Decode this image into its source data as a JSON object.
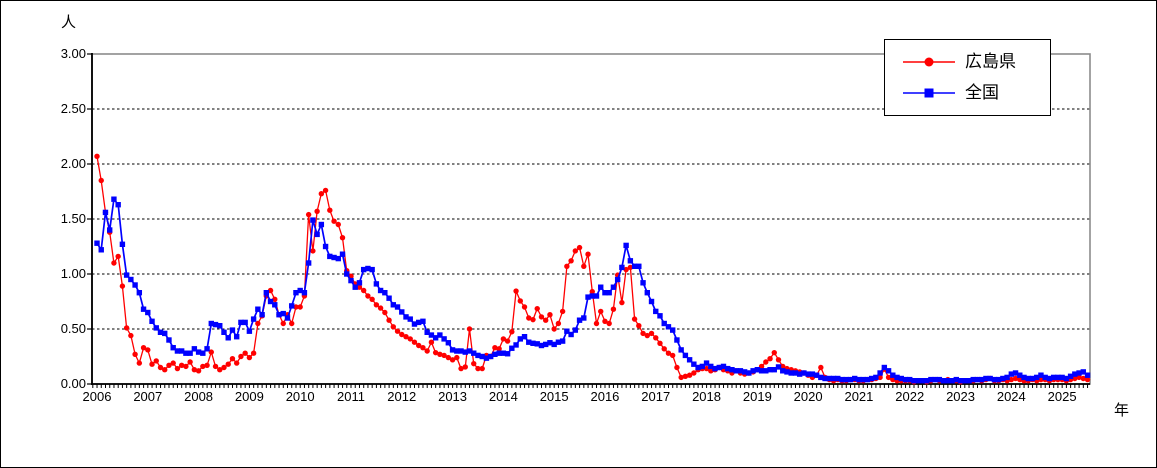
{
  "figure": {
    "y_unit": "人",
    "x_unit": "年",
    "y_tick_labels": [
      "3.00",
      "2.50",
      "2.00",
      "1.50",
      "1.00",
      "0.50",
      "0.00"
    ],
    "x_tick_labels": [
      "2006",
      "2007",
      "2008",
      "2009",
      "2010",
      "2011",
      "2012",
      "2013",
      "2014",
      "2015",
      "2016",
      "2017",
      "2018",
      "2019",
      "2020",
      "2021",
      "2022",
      "2023",
      "2024",
      "2025"
    ]
  },
  "legend": {
    "items": [
      {
        "label": "広島県",
        "color": "#ff0000",
        "marker": "circle"
      },
      {
        "label": "全国",
        "color": "#0000ff",
        "marker": "square"
      }
    ]
  },
  "chart_data": {
    "type": "line",
    "title": "",
    "xlabel": "年",
    "ylabel": "人",
    "x_interval": "monthly",
    "x_start": "2006-01",
    "x_end": "2025-07",
    "ylim": [
      0,
      3
    ],
    "y_ticks": [
      0,
      0.5,
      1,
      1.5,
      2,
      2.5,
      3
    ],
    "grid": "horizontal-dashed",
    "legend_position": "top-right",
    "frame_color": "#8c8c8c",
    "series": [
      {
        "name": "広島県",
        "color": "#ff0000",
        "marker": "circle",
        "values": [
          2.07,
          1.85,
          1.56,
          1.38,
          1.1,
          1.16,
          0.89,
          0.51,
          0.44,
          0.27,
          0.19,
          0.33,
          0.31,
          0.18,
          0.21,
          0.15,
          0.13,
          0.17,
          0.19,
          0.14,
          0.17,
          0.16,
          0.2,
          0.13,
          0.12,
          0.16,
          0.17,
          0.29,
          0.16,
          0.13,
          0.15,
          0.18,
          0.23,
          0.19,
          0.25,
          0.28,
          0.24,
          0.28,
          0.55,
          0.62,
          0.8,
          0.85,
          0.77,
          0.63,
          0.55,
          0.63,
          0.55,
          0.7,
          0.7,
          0.8,
          1.54,
          1.21,
          1.57,
          1.73,
          1.76,
          1.58,
          1.48,
          1.45,
          1.33,
          1.03,
          0.98,
          0.91,
          0.88,
          0.85,
          0.8,
          0.77,
          0.72,
          0.69,
          0.65,
          0.58,
          0.52,
          0.48,
          0.45,
          0.43,
          0.41,
          0.38,
          0.35,
          0.33,
          0.3,
          0.38,
          0.285,
          0.27,
          0.26,
          0.24,
          0.22,
          0.24,
          0.14,
          0.155,
          0.5,
          0.185,
          0.14,
          0.14,
          0.26,
          0.25,
          0.33,
          0.32,
          0.41,
          0.39,
          0.475,
          0.845,
          0.755,
          0.7,
          0.6,
          0.585,
          0.685,
          0.61,
          0.58,
          0.63,
          0.5,
          0.55,
          0.66,
          1.07,
          1.12,
          1.21,
          1.24,
          1.07,
          1.18,
          0.84,
          0.55,
          0.66,
          0.57,
          0.55,
          0.68,
          0.99,
          0.74,
          1.04,
          1.06,
          0.59,
          0.53,
          0.46,
          0.44,
          0.46,
          0.42,
          0.37,
          0.32,
          0.28,
          0.26,
          0.15,
          0.06,
          0.07,
          0.08,
          0.1,
          0.13,
          0.14,
          0.14,
          0.12,
          0.13,
          0.15,
          0.13,
          0.12,
          0.1,
          0.12,
          0.1,
          0.09,
          0.1,
          0.11,
          0.13,
          0.16,
          0.2,
          0.23,
          0.285,
          0.22,
          0.16,
          0.14,
          0.13,
          0.12,
          0.11,
          0.1,
          0.08,
          0.06,
          0.08,
          0.15,
          0.06,
          0.04,
          0.03,
          0.04,
          0.03,
          0.03,
          0.04,
          0.04,
          0.03,
          0.03,
          0.04,
          0.04,
          0.05,
          0.06,
          0.135,
          0.06,
          0.04,
          0.03,
          0.03,
          0.03,
          0.03,
          0.02,
          0.03,
          0.03,
          0.02,
          0.03,
          0.04,
          0.03,
          0.03,
          0.04,
          0.03,
          0.03,
          0.02,
          0.03,
          0.03,
          0.03,
          0.04,
          0.03,
          0.04,
          0.05,
          0.03,
          0.03,
          0.04,
          0.03,
          0.04,
          0.05,
          0.04,
          0.03,
          0.03,
          0.04,
          0.03,
          0.04,
          0.04,
          0.03,
          0.04,
          0.04,
          0.04,
          0.03,
          0.04,
          0.05,
          0.06,
          0.05,
          0.04
        ]
      },
      {
        "name": "全国",
        "color": "#0000ff",
        "marker": "square",
        "values": [
          1.28,
          1.22,
          1.56,
          1.4,
          1.68,
          1.63,
          1.27,
          0.99,
          0.95,
          0.9,
          0.83,
          0.68,
          0.65,
          0.57,
          0.51,
          0.47,
          0.46,
          0.4,
          0.33,
          0.3,
          0.3,
          0.28,
          0.28,
          0.32,
          0.29,
          0.28,
          0.32,
          0.55,
          0.54,
          0.53,
          0.47,
          0.42,
          0.49,
          0.43,
          0.56,
          0.56,
          0.48,
          0.59,
          0.68,
          0.63,
          0.83,
          0.75,
          0.72,
          0.63,
          0.64,
          0.6,
          0.71,
          0.83,
          0.85,
          0.83,
          1.1,
          1.49,
          1.36,
          1.45,
          1.25,
          1.16,
          1.15,
          1.14,
          1.18,
          1.0,
          0.94,
          0.88,
          0.92,
          1.04,
          1.05,
          1.04,
          0.91,
          0.85,
          0.83,
          0.78,
          0.72,
          0.7,
          0.655,
          0.61,
          0.59,
          0.545,
          0.56,
          0.57,
          0.47,
          0.445,
          0.42,
          0.445,
          0.41,
          0.375,
          0.31,
          0.3,
          0.3,
          0.29,
          0.3,
          0.28,
          0.26,
          0.25,
          0.235,
          0.25,
          0.27,
          0.28,
          0.28,
          0.275,
          0.325,
          0.355,
          0.41,
          0.43,
          0.38,
          0.37,
          0.365,
          0.35,
          0.36,
          0.375,
          0.36,
          0.38,
          0.39,
          0.48,
          0.45,
          0.49,
          0.58,
          0.6,
          0.79,
          0.8,
          0.8,
          0.88,
          0.83,
          0.83,
          0.88,
          0.95,
          1.06,
          1.26,
          1.12,
          1.07,
          1.07,
          0.92,
          0.83,
          0.75,
          0.66,
          0.62,
          0.55,
          0.52,
          0.49,
          0.4,
          0.31,
          0.26,
          0.22,
          0.18,
          0.15,
          0.16,
          0.19,
          0.16,
          0.14,
          0.15,
          0.16,
          0.14,
          0.13,
          0.12,
          0.12,
          0.11,
          0.1,
          0.12,
          0.13,
          0.12,
          0.12,
          0.13,
          0.13,
          0.155,
          0.12,
          0.11,
          0.1,
          0.1,
          0.09,
          0.1,
          0.09,
          0.09,
          0.08,
          0.06,
          0.05,
          0.05,
          0.05,
          0.05,
          0.04,
          0.04,
          0.04,
          0.05,
          0.04,
          0.04,
          0.04,
          0.05,
          0.06,
          0.1,
          0.15,
          0.12,
          0.08,
          0.06,
          0.05,
          0.04,
          0.04,
          0.03,
          0.03,
          0.03,
          0.03,
          0.04,
          0.04,
          0.04,
          0.03,
          0.03,
          0.03,
          0.04,
          0.03,
          0.03,
          0.03,
          0.04,
          0.04,
          0.04,
          0.05,
          0.05,
          0.04,
          0.04,
          0.05,
          0.06,
          0.09,
          0.1,
          0.08,
          0.06,
          0.05,
          0.05,
          0.06,
          0.08,
          0.06,
          0.05,
          0.06,
          0.06,
          0.06,
          0.05,
          0.07,
          0.09,
          0.1,
          0.11,
          0.08
        ]
      }
    ]
  }
}
